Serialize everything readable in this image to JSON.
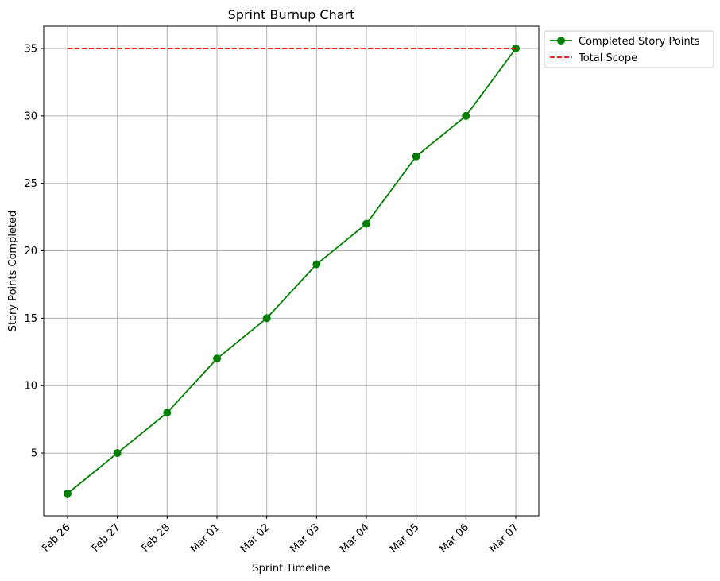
{
  "chart_data": {
    "type": "line",
    "title": "Sprint Burnup Chart",
    "xlabel": "Sprint Timeline",
    "ylabel": "Story Points Completed",
    "categories": [
      "Feb 26",
      "Feb 27",
      "Feb 28",
      "Mar 01",
      "Mar 02",
      "Mar 03",
      "Mar 04",
      "Mar 05",
      "Mar 06",
      "Mar 07"
    ],
    "series": [
      {
        "name": "Completed Story Points",
        "values": [
          2,
          5,
          8,
          12,
          15,
          19,
          22,
          27,
          30,
          35
        ],
        "color": "#008000",
        "style": "solid",
        "marker": "circle"
      },
      {
        "name": "Total Scope",
        "values": [
          35,
          35,
          35,
          35,
          35,
          35,
          35,
          35,
          35,
          35
        ],
        "color": "#ff0000",
        "style": "dashed",
        "marker": "none"
      }
    ],
    "ylim": [
      0.35,
      36.65
    ],
    "yticks": [
      5,
      10,
      15,
      20,
      25,
      30,
      35
    ],
    "grid": true,
    "legend_position": "upper-left-outside-right",
    "x_tick_rotation": 45
  }
}
